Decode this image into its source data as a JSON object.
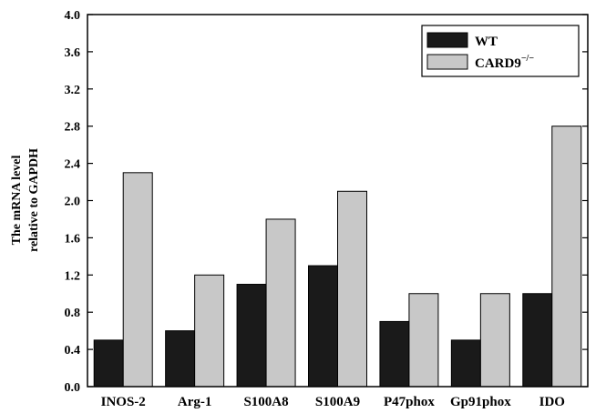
{
  "chart_data": {
    "type": "bar",
    "ylabel_lines": [
      "The mRNA level",
      "relative to GAPDH"
    ],
    "categories": [
      "INOS-2",
      "Arg-1",
      "S100A8",
      "S100A9",
      "P47phox",
      "Gp91phox",
      "IDO"
    ],
    "series": [
      {
        "name": "WT",
        "values": [
          0.5,
          0.6,
          1.1,
          1.3,
          0.7,
          0.5,
          1.0
        ],
        "color": "#1a1a1a"
      },
      {
        "name": "CARD9",
        "name_superscript": "−/−",
        "values": [
          2.3,
          1.2,
          1.8,
          2.1,
          1.0,
          1.0,
          2.8
        ],
        "color": "#c8c8c8"
      }
    ],
    "ylim": [
      0,
      4.0
    ],
    "yticks": [
      "0.0",
      "0.4",
      "0.8",
      "1.2",
      "1.6",
      "2.0",
      "2.4",
      "2.8",
      "3.2",
      "3.6",
      "4.0"
    ],
    "grid": false,
    "legend_position": "top-right"
  }
}
